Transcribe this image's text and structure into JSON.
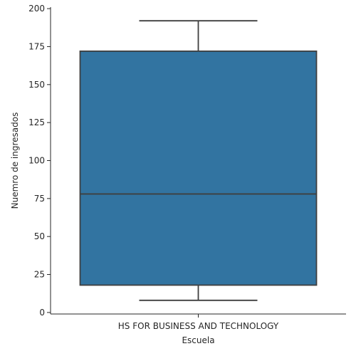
{
  "chart_data": {
    "type": "box",
    "categories": [
      "HS FOR BUSINESS AND TECHNOLOGY"
    ],
    "boxes": [
      {
        "category": "HS FOR BUSINESS AND TECHNOLOGY",
        "whisker_low": 8,
        "q1": 18,
        "median": 78,
        "q3": 172,
        "whisker_high": 192
      }
    ],
    "xlabel": "Escuela",
    "ylabel": "Nuemro de ingresados",
    "ylim": [
      -1,
      201
    ],
    "yticks": [
      0,
      25,
      50,
      75,
      100,
      125,
      150,
      175,
      200
    ],
    "grid": false,
    "colors": {
      "box": "#3274a1",
      "line": "#3f3f3f",
      "axis": "#262626"
    }
  }
}
